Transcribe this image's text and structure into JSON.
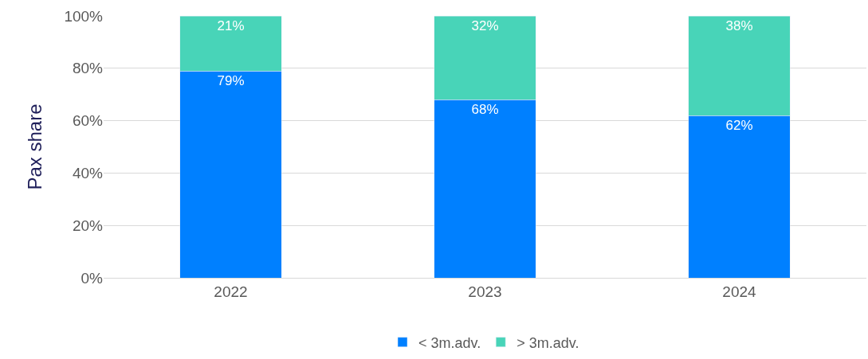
{
  "chart_data": {
    "type": "bar",
    "stacked": true,
    "ylabel": "Pax share",
    "categories": [
      "2022",
      "2023",
      "2024"
    ],
    "series": [
      {
        "name": "< 3m.adv.",
        "color": "#0080ff",
        "values": [
          79,
          68,
          62
        ],
        "value_labels": [
          "79%",
          "68%",
          "62%"
        ]
      },
      {
        "name": "> 3m.adv.",
        "color": "#48d4b8",
        "values": [
          21,
          32,
          38
        ],
        "value_labels": [
          "21%",
          "32%",
          "38%"
        ]
      }
    ],
    "ylim": [
      0,
      100
    ],
    "yticks": [
      {
        "value": 0,
        "label": "0%"
      },
      {
        "value": 20,
        "label": "20%"
      },
      {
        "value": 40,
        "label": "40%"
      },
      {
        "value": 60,
        "label": "60%"
      },
      {
        "value": 80,
        "label": "80%"
      },
      {
        "value": 100,
        "label": "100%"
      }
    ],
    "grid": "y",
    "legend": "bottom"
  }
}
